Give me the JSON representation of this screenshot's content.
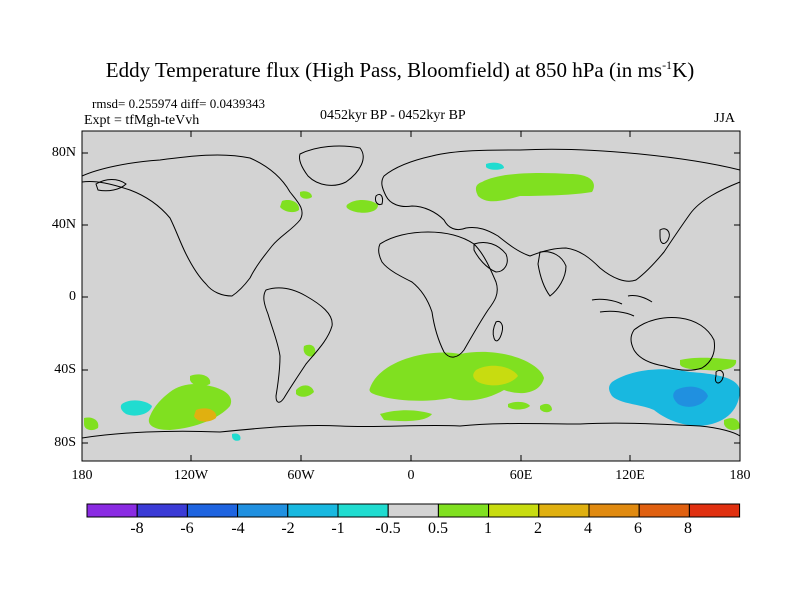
{
  "title_main": "Eddy Temperature flux (High Pass, Bloomfield) at 850 hPa (in ms",
  "title_sup": "-1",
  "title_end": "K)",
  "stats": "rmsd= 0.255974 diff= 0.0439343",
  "experiment": "Expt = tfMgh-teVvh",
  "period": "0452kyr BP - 0452kyr BP",
  "season": "JJA",
  "lat_labels": [
    "80N",
    "40N",
    "0",
    "40S",
    "80S"
  ],
  "lon_labels": [
    "180",
    "120W",
    "60W",
    "0",
    "60E",
    "120E",
    "180"
  ],
  "colorbar": {
    "labels": [
      "-8",
      "-6",
      "-4",
      "-2",
      "-1",
      "-0.5",
      "0.5",
      "1",
      "2",
      "4",
      "6",
      "8"
    ],
    "colors": [
      "#8a2be2",
      "#3b3bd6",
      "#1e64e0",
      "#2090e0",
      "#18b8e0",
      "#20dcd0",
      "#d3d3d3",
      "#80e020",
      "#c8dc10",
      "#e0b010",
      "#e08a10",
      "#e06010",
      "#e03010"
    ]
  },
  "colors": {
    "ocean": "#d3d3d3",
    "coast": "#000000",
    "positive": "#80e020",
    "positive_high": "#c8dc10",
    "positive_higher": "#e0b010",
    "negative": "#18b8e0",
    "negative_low": "#20dcd0"
  }
}
